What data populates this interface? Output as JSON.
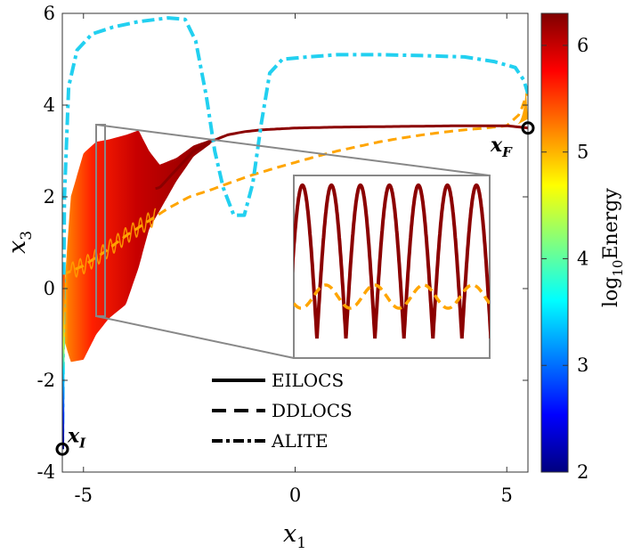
{
  "chart_data": {
    "type": "line",
    "xlabel": "x",
    "xlabel_sub": "1",
    "ylabel": "x",
    "ylabel_sub": "3",
    "xlim": [
      -5.5,
      5.5
    ],
    "ylim": [
      -4,
      6
    ],
    "xticks": [
      -5,
      0,
      5
    ],
    "xtick_labels": [
      "-5",
      "0",
      "5"
    ],
    "yticks": [
      -4,
      -2,
      0,
      2,
      4,
      6
    ],
    "ytick_labels": [
      "-4",
      "-2",
      "0",
      "2",
      "4",
      "6"
    ],
    "colorbar": {
      "label": "log",
      "label_sub": "10",
      "label_rest": "Energy",
      "range": [
        2,
        6.3
      ],
      "ticks": [
        2,
        3,
        4,
        5,
        6
      ],
      "tick_labels": [
        "2",
        "3",
        "4",
        "5",
        "6"
      ],
      "colormap": "jet"
    },
    "legend": {
      "placement": "bottom-center",
      "entries": [
        {
          "label": "EILOCS",
          "style": "solid"
        },
        {
          "label": "DDLOCS",
          "style": "dashed"
        },
        {
          "label": "ALITE",
          "style": "dash-dot"
        }
      ]
    },
    "endpoints": {
      "start": {
        "label": "x",
        "sub": "I",
        "x": -5.5,
        "y": -3.5
      },
      "end": {
        "label": "x",
        "sub": "F",
        "x": 5.5,
        "y": 3.5
      }
    },
    "series": [
      {
        "name": "EILOCS",
        "style": "solid",
        "color": "#8b0000",
        "x": [
          -5.5,
          -5.3,
          -5.0,
          -4.7,
          -4.4,
          -4.0,
          -3.7,
          -3.45,
          -3.2,
          -2.8,
          -2.4,
          -2.0,
          -1.6,
          -1.2,
          -0.8,
          -0.4,
          0.0,
          1.0,
          2.0,
          3.0,
          4.0,
          5.0,
          5.5
        ],
        "center": [
          -0.8,
          0.2,
          0.7,
          1.1,
          1.3,
          1.5,
          1.95,
          2.15,
          2.2,
          2.6,
          3.0,
          3.2,
          3.35,
          3.42,
          3.46,
          3.48,
          3.5,
          3.52,
          3.53,
          3.54,
          3.55,
          3.55,
          3.5
        ],
        "half_amplitude": [
          0.2,
          1.8,
          2.25,
          2.1,
          1.95,
          1.85,
          1.5,
          0.85,
          0.5,
          0.25,
          0.12,
          0.05,
          0.03,
          0.02,
          0.01,
          0.01,
          0.0,
          0.0,
          0.0,
          0.0,
          0.0,
          0.0,
          0.0
        ]
      },
      {
        "name": "DDLOCS",
        "style": "dashed",
        "color": "#ffa500",
        "x": [
          -5.5,
          -5.0,
          -4.5,
          -4.0,
          -3.5,
          -3.0,
          -2.5,
          -2.0,
          -1.5,
          -1.0,
          -0.5,
          0.0,
          0.5,
          1.0,
          1.5,
          2.0,
          2.5,
          3.0,
          3.5,
          4.0,
          4.5,
          5.0,
          5.3,
          5.5
        ],
        "y": [
          0.3,
          0.5,
          0.8,
          1.15,
          1.45,
          1.75,
          2.0,
          2.15,
          2.32,
          2.48,
          2.62,
          2.75,
          2.88,
          3.0,
          3.1,
          3.2,
          3.28,
          3.35,
          3.41,
          3.46,
          3.5,
          3.55,
          3.8,
          4.3
        ]
      },
      {
        "name": "ALITE",
        "style": "dash-dot",
        "color": "#22d0f0",
        "x": [
          -5.5,
          -5.45,
          -5.35,
          -5.15,
          -4.8,
          -4.3,
          -3.7,
          -3.0,
          -2.6,
          -2.35,
          -2.1,
          -1.9,
          -1.7,
          -1.45,
          -1.2,
          -1.0,
          -0.8,
          -0.6,
          -0.3,
          0.3,
          1.0,
          2.0,
          3.0,
          4.0,
          4.7,
          5.2,
          5.4,
          5.5
        ],
        "y": [
          -3.5,
          2.0,
          4.4,
          5.2,
          5.55,
          5.7,
          5.82,
          5.9,
          5.87,
          5.4,
          4.2,
          3.0,
          2.2,
          1.6,
          1.6,
          2.3,
          3.6,
          4.7,
          5.0,
          5.05,
          5.1,
          5.1,
          5.08,
          5.05,
          4.95,
          4.82,
          4.55,
          4.25
        ]
      }
    ],
    "inset": {
      "zoom_region": {
        "x": [
          -4.6,
          -4.4
        ],
        "y": [
          -0.6,
          3.5
        ]
      },
      "eilocs_cycles": 7,
      "ddlocs_cycles": 4
    }
  }
}
